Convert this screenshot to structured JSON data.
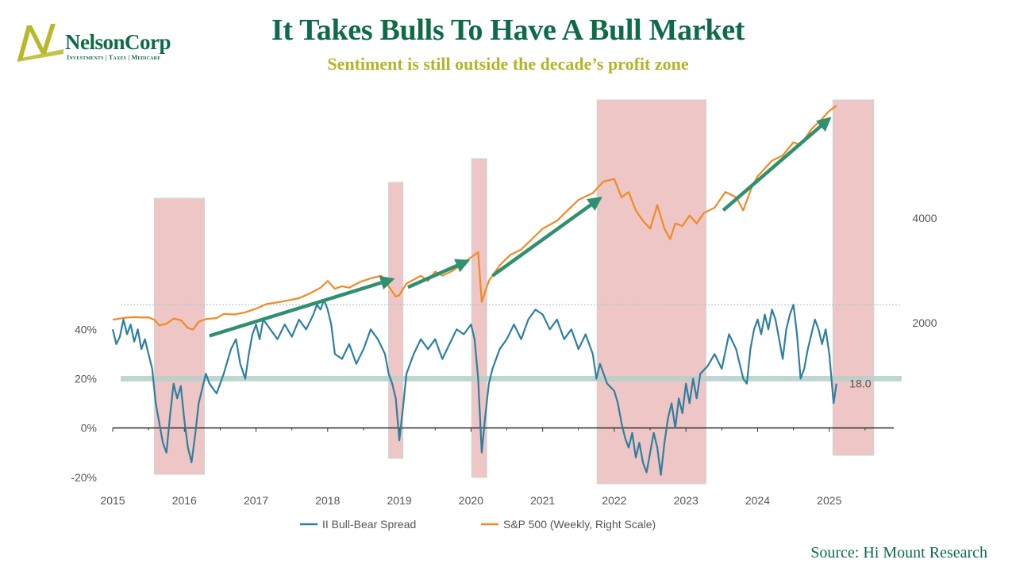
{
  "header": {
    "title": "It Takes Bulls To Have A Bull Market",
    "subtitle": "Sentiment is still outside the decade’s profit zone"
  },
  "logo": {
    "name": "NelsonCorp",
    "tagline": "Investments | Taxes | Medicare",
    "colors": {
      "green": "#0f6b45",
      "olive": "#b8b82a"
    }
  },
  "footer": {
    "source": "Source: Hi Mount Research"
  },
  "chart_data": {
    "type": "line",
    "x_range": [
      2015,
      2025.9
    ],
    "x_ticks": [
      "2015",
      "2016",
      "2017",
      "2018",
      "2019",
      "2020",
      "2021",
      "2022",
      "2023",
      "2024",
      "2025"
    ],
    "y_left": {
      "range": [
        -22,
        52
      ],
      "ticks": [
        "40%",
        "20%",
        "0%",
        "-20%"
      ],
      "tick_values": [
        40,
        20,
        0,
        -20
      ]
    },
    "y_right": {
      "range": [
        1500,
        6200
      ],
      "ticks": [
        "4000",
        "2000"
      ],
      "tick_values": [
        4000,
        2000
      ]
    },
    "reference_lines": [
      {
        "axis": "left",
        "value": 20,
        "color": "#b5d0c9"
      },
      {
        "axis": "left",
        "value": 50,
        "color": "#9fc4c9",
        "style": "dotted"
      },
      {
        "axis": "left",
        "value": 0,
        "color": "#333333"
      }
    ],
    "shaded_periods": [
      {
        "start": 2015.58,
        "end": 2016.28
      },
      {
        "start": 2018.85,
        "end": 2019.05
      },
      {
        "start": 2020.01,
        "end": 2020.22
      },
      {
        "start": 2021.76,
        "end": 2023.28
      },
      {
        "start": 2025.05,
        "end": 2025.62
      }
    ],
    "annotation": {
      "text": "18.0",
      "x": 2025.15,
      "y": 18
    },
    "series": [
      {
        "name": "II Bull-Bear Spread",
        "axis": "left",
        "color": "#2f7fa0",
        "points": [
          [
            2015.0,
            40
          ],
          [
            2015.05,
            34
          ],
          [
            2015.1,
            37
          ],
          [
            2015.15,
            44
          ],
          [
            2015.2,
            38
          ],
          [
            2015.25,
            42
          ],
          [
            2015.3,
            35
          ],
          [
            2015.35,
            40
          ],
          [
            2015.4,
            32
          ],
          [
            2015.45,
            36
          ],
          [
            2015.5,
            30
          ],
          [
            2015.55,
            24
          ],
          [
            2015.6,
            10
          ],
          [
            2015.65,
            2
          ],
          [
            2015.7,
            -6
          ],
          [
            2015.75,
            -10
          ],
          [
            2015.8,
            5
          ],
          [
            2015.85,
            18
          ],
          [
            2015.9,
            12
          ],
          [
            2015.95,
            17
          ],
          [
            2016.0,
            3
          ],
          [
            2016.05,
            -8
          ],
          [
            2016.1,
            -14
          ],
          [
            2016.15,
            -3
          ],
          [
            2016.2,
            10
          ],
          [
            2016.25,
            16
          ],
          [
            2016.3,
            22
          ],
          [
            2016.35,
            18
          ],
          [
            2016.45,
            14
          ],
          [
            2016.55,
            22
          ],
          [
            2016.65,
            32
          ],
          [
            2016.72,
            36
          ],
          [
            2016.78,
            26
          ],
          [
            2016.85,
            20
          ],
          [
            2016.9,
            30
          ],
          [
            2016.95,
            38
          ],
          [
            2017.0,
            42
          ],
          [
            2017.05,
            36
          ],
          [
            2017.1,
            44
          ],
          [
            2017.2,
            40
          ],
          [
            2017.3,
            36
          ],
          [
            2017.4,
            42
          ],
          [
            2017.5,
            37
          ],
          [
            2017.6,
            44
          ],
          [
            2017.7,
            40
          ],
          [
            2017.8,
            46
          ],
          [
            2017.85,
            50
          ],
          [
            2017.9,
            48
          ],
          [
            2017.95,
            52
          ],
          [
            2018.0,
            48
          ],
          [
            2018.05,
            42
          ],
          [
            2018.1,
            30
          ],
          [
            2018.2,
            28
          ],
          [
            2018.3,
            34
          ],
          [
            2018.4,
            26
          ],
          [
            2018.5,
            32
          ],
          [
            2018.6,
            40
          ],
          [
            2018.7,
            36
          ],
          [
            2018.8,
            30
          ],
          [
            2018.85,
            22
          ],
          [
            2018.9,
            18
          ],
          [
            2018.95,
            12
          ],
          [
            2019.0,
            -5
          ],
          [
            2019.05,
            8
          ],
          [
            2019.1,
            22
          ],
          [
            2019.2,
            30
          ],
          [
            2019.3,
            36
          ],
          [
            2019.4,
            32
          ],
          [
            2019.5,
            36
          ],
          [
            2019.6,
            28
          ],
          [
            2019.7,
            34
          ],
          [
            2019.8,
            40
          ],
          [
            2019.9,
            38
          ],
          [
            2020.0,
            42
          ],
          [
            2020.05,
            36
          ],
          [
            2020.1,
            20
          ],
          [
            2020.15,
            -10
          ],
          [
            2020.2,
            5
          ],
          [
            2020.25,
            18
          ],
          [
            2020.3,
            24
          ],
          [
            2020.4,
            32
          ],
          [
            2020.5,
            36
          ],
          [
            2020.6,
            42
          ],
          [
            2020.7,
            36
          ],
          [
            2020.8,
            44
          ],
          [
            2020.9,
            48
          ],
          [
            2021.0,
            46
          ],
          [
            2021.1,
            40
          ],
          [
            2021.2,
            44
          ],
          [
            2021.3,
            36
          ],
          [
            2021.4,
            40
          ],
          [
            2021.5,
            32
          ],
          [
            2021.6,
            38
          ],
          [
            2021.7,
            30
          ],
          [
            2021.75,
            20
          ],
          [
            2021.8,
            26
          ],
          [
            2021.9,
            18
          ],
          [
            2022.0,
            15
          ],
          [
            2022.05,
            10
          ],
          [
            2022.1,
            2
          ],
          [
            2022.15,
            -4
          ],
          [
            2022.2,
            -8
          ],
          [
            2022.25,
            -2
          ],
          [
            2022.3,
            -12
          ],
          [
            2022.35,
            -6
          ],
          [
            2022.4,
            -14
          ],
          [
            2022.45,
            -18
          ],
          [
            2022.5,
            -10
          ],
          [
            2022.55,
            -2
          ],
          [
            2022.6,
            -8
          ],
          [
            2022.65,
            -19
          ],
          [
            2022.7,
            -6
          ],
          [
            2022.75,
            4
          ],
          [
            2022.8,
            10
          ],
          [
            2022.85,
            0
          ],
          [
            2022.9,
            12
          ],
          [
            2022.95,
            6
          ],
          [
            2023.0,
            18
          ],
          [
            2023.05,
            10
          ],
          [
            2023.1,
            20
          ],
          [
            2023.15,
            12
          ],
          [
            2023.2,
            22
          ],
          [
            2023.3,
            25
          ],
          [
            2023.4,
            30
          ],
          [
            2023.5,
            24
          ],
          [
            2023.6,
            38
          ],
          [
            2023.7,
            32
          ],
          [
            2023.8,
            20
          ],
          [
            2023.85,
            18
          ],
          [
            2023.9,
            32
          ],
          [
            2023.95,
            40
          ],
          [
            2024.0,
            44
          ],
          [
            2024.05,
            38
          ],
          [
            2024.1,
            46
          ],
          [
            2024.15,
            40
          ],
          [
            2024.2,
            48
          ],
          [
            2024.25,
            44
          ],
          [
            2024.3,
            36
          ],
          [
            2024.35,
            28
          ],
          [
            2024.4,
            40
          ],
          [
            2024.45,
            46
          ],
          [
            2024.5,
            50
          ],
          [
            2024.55,
            38
          ],
          [
            2024.6,
            20
          ],
          [
            2024.65,
            24
          ],
          [
            2024.7,
            32
          ],
          [
            2024.75,
            38
          ],
          [
            2024.8,
            44
          ],
          [
            2024.85,
            40
          ],
          [
            2024.9,
            34
          ],
          [
            2024.95,
            40
          ],
          [
            2025.0,
            30
          ],
          [
            2025.03,
            20
          ],
          [
            2025.06,
            10
          ],
          [
            2025.1,
            18
          ]
        ]
      },
      {
        "name": "S&P 500 (Weekly, Right Scale)",
        "axis": "right",
        "color": "#f08a24",
        "points": [
          [
            2015.0,
            2060
          ],
          [
            2015.1,
            2080
          ],
          [
            2015.2,
            2100
          ],
          [
            2015.3,
            2110
          ],
          [
            2015.4,
            2100
          ],
          [
            2015.5,
            2105
          ],
          [
            2015.58,
            2060
          ],
          [
            2015.65,
            1950
          ],
          [
            2015.75,
            1980
          ],
          [
            2015.85,
            2080
          ],
          [
            2015.95,
            2050
          ],
          [
            2016.05,
            1900
          ],
          [
            2016.12,
            1870
          ],
          [
            2016.2,
            2020
          ],
          [
            2016.3,
            2070
          ],
          [
            2016.45,
            2090
          ],
          [
            2016.55,
            2170
          ],
          [
            2016.7,
            2160
          ],
          [
            2016.85,
            2200
          ],
          [
            2017.0,
            2270
          ],
          [
            2017.15,
            2360
          ],
          [
            2017.3,
            2390
          ],
          [
            2017.45,
            2430
          ],
          [
            2017.6,
            2470
          ],
          [
            2017.75,
            2560
          ],
          [
            2017.9,
            2670
          ],
          [
            2018.0,
            2800
          ],
          [
            2018.1,
            2650
          ],
          [
            2018.2,
            2700
          ],
          [
            2018.3,
            2670
          ],
          [
            2018.45,
            2780
          ],
          [
            2018.6,
            2850
          ],
          [
            2018.75,
            2900
          ],
          [
            2018.85,
            2700
          ],
          [
            2018.95,
            2500
          ],
          [
            2019.0,
            2530
          ],
          [
            2019.1,
            2750
          ],
          [
            2019.3,
            2900
          ],
          [
            2019.4,
            2800
          ],
          [
            2019.5,
            2980
          ],
          [
            2019.6,
            2900
          ],
          [
            2019.75,
            3000
          ],
          [
            2019.9,
            3150
          ],
          [
            2020.0,
            3250
          ],
          [
            2020.1,
            3350
          ],
          [
            2020.15,
            2400
          ],
          [
            2020.25,
            2800
          ],
          [
            2020.4,
            3100
          ],
          [
            2020.55,
            3300
          ],
          [
            2020.7,
            3400
          ],
          [
            2020.85,
            3600
          ],
          [
            2021.0,
            3800
          ],
          [
            2021.2,
            3950
          ],
          [
            2021.35,
            4150
          ],
          [
            2021.5,
            4350
          ],
          [
            2021.7,
            4480
          ],
          [
            2021.85,
            4700
          ],
          [
            2022.0,
            4750
          ],
          [
            2022.1,
            4400
          ],
          [
            2022.2,
            4500
          ],
          [
            2022.3,
            4150
          ],
          [
            2022.4,
            3950
          ],
          [
            2022.5,
            3800
          ],
          [
            2022.6,
            4250
          ],
          [
            2022.7,
            3800
          ],
          [
            2022.78,
            3600
          ],
          [
            2022.85,
            3900
          ],
          [
            2022.95,
            3850
          ],
          [
            2023.05,
            4050
          ],
          [
            2023.15,
            3900
          ],
          [
            2023.25,
            4100
          ],
          [
            2023.4,
            4200
          ],
          [
            2023.55,
            4500
          ],
          [
            2023.7,
            4400
          ],
          [
            2023.8,
            4150
          ],
          [
            2023.92,
            4600
          ],
          [
            2024.0,
            4800
          ],
          [
            2024.2,
            5100
          ],
          [
            2024.35,
            5200
          ],
          [
            2024.5,
            5450
          ],
          [
            2024.6,
            5400
          ],
          [
            2024.75,
            5700
          ],
          [
            2024.9,
            5900
          ],
          [
            2025.0,
            6050
          ],
          [
            2025.1,
            6150
          ]
        ]
      }
    ],
    "arrows": [
      {
        "from": [
          2016.35,
          1750
        ],
        "to": [
          2018.9,
          2830
        ]
      },
      {
        "from": [
          2019.12,
          2680
        ],
        "to": [
          2019.95,
          3180
        ]
      },
      {
        "from": [
          2020.3,
          2900
        ],
        "to": [
          2021.8,
          4380
        ]
      },
      {
        "from": [
          2023.52,
          4150
        ],
        "to": [
          2025.0,
          5900
        ]
      }
    ],
    "arrow_color": "#2f8f6f",
    "legend": {
      "placement": "bottom"
    }
  }
}
